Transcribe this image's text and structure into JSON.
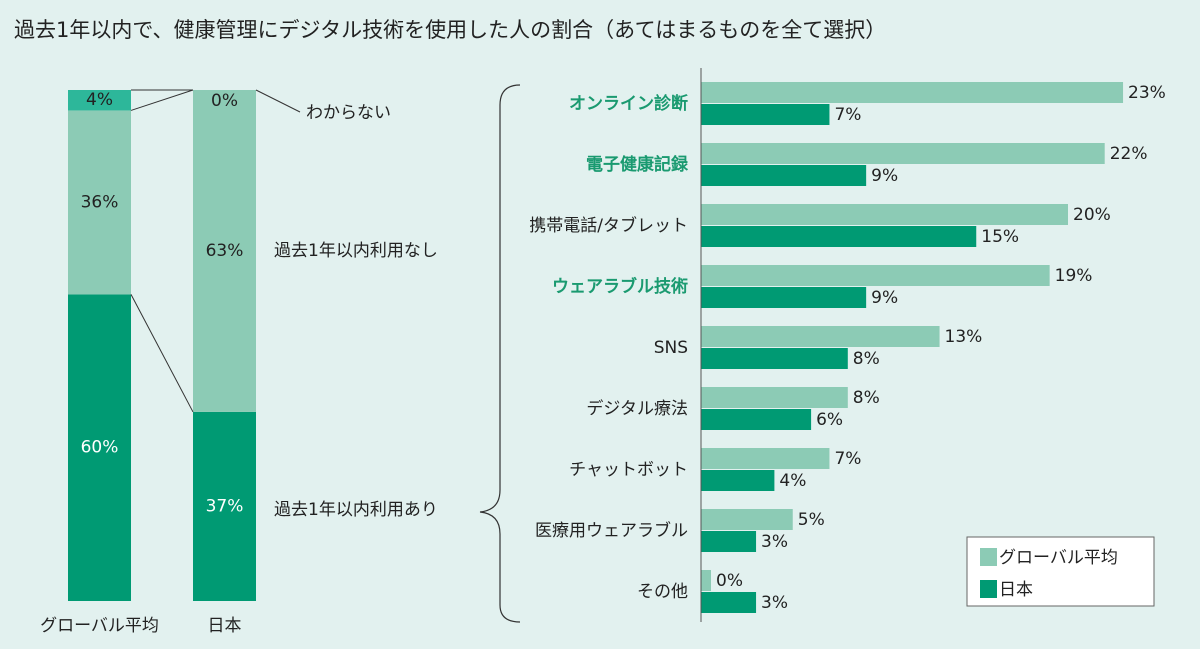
{
  "title": "過去1年以内で、健康管理にデジタル技術を使用した人の割合（あてはまるものを全て選択）",
  "colors": {
    "background": "#e2f1ef",
    "global": "#8ccbb5",
    "japan": "#009a73",
    "unknown": "#2db79a",
    "highlight": "#1a9a70"
  },
  "chart_data": [
    {
      "type": "bar",
      "stacked": true,
      "categories": [
        "グローバル平均",
        "日本"
      ],
      "series": [
        {
          "name": "過去1年以内利用あり",
          "values": [
            60,
            37
          ]
        },
        {
          "name": "過去1年以内利用なし",
          "values": [
            36,
            63
          ]
        },
        {
          "name": "わからない",
          "values": [
            4,
            0
          ]
        }
      ],
      "unit": "%",
      "ylim": [
        0,
        100
      ]
    },
    {
      "type": "bar",
      "orientation": "horizontal",
      "categories": [
        "オンライン診断",
        "電子健康記録",
        "携帯電話/タブレット",
        "ウェアラブル技術",
        "SNS",
        "デジタル療法",
        "チャットボット",
        "医療用ウェアラブル",
        "その他"
      ],
      "highlighted": [
        true,
        true,
        false,
        true,
        false,
        false,
        false,
        false,
        false
      ],
      "series": [
        {
          "name": "グローバル平均",
          "values": [
            23,
            22,
            20,
            19,
            13,
            8,
            7,
            5,
            0
          ]
        },
        {
          "name": "日本",
          "values": [
            7,
            9,
            15,
            9,
            8,
            6,
            4,
            3,
            3
          ]
        }
      ],
      "unit": "%",
      "legend": "bottom-right"
    }
  ]
}
